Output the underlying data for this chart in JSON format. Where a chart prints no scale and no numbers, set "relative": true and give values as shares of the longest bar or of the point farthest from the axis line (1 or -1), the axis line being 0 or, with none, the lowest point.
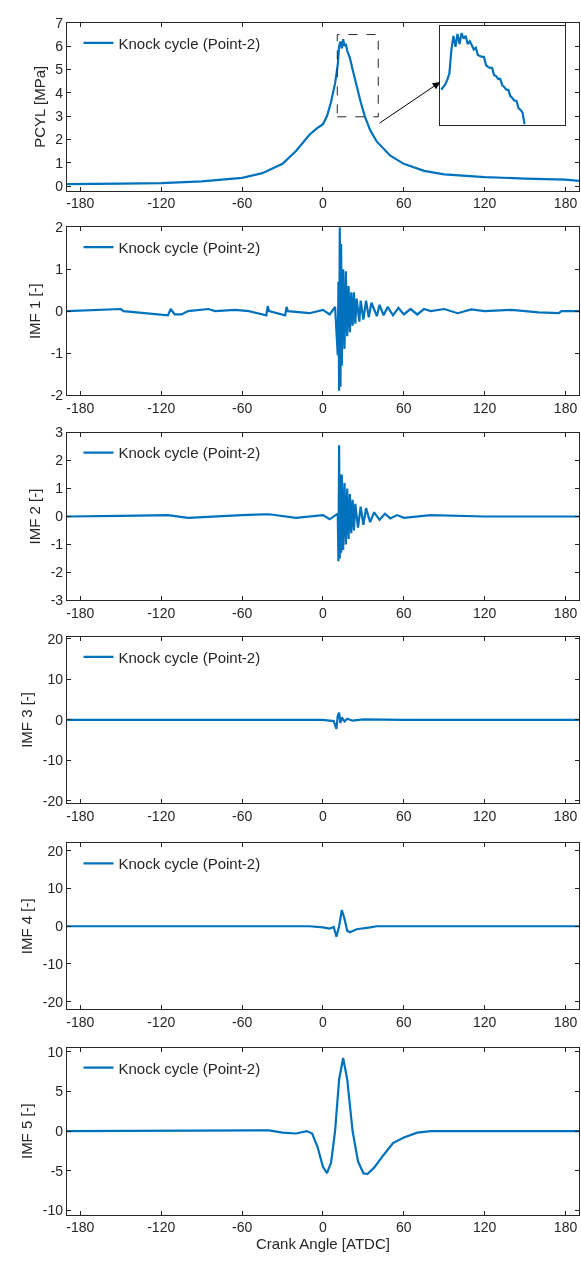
{
  "chart_data": [
    {
      "type": "line",
      "ylabel": "PCYL [MPa]",
      "xlim": [
        -190,
        190
      ],
      "xticks": [
        -180,
        -120,
        -60,
        0,
        60,
        120,
        180
      ],
      "ylim": [
        -0.2,
        7
      ],
      "yticks": [
        0,
        1,
        2,
        3,
        4,
        5,
        6,
        7
      ],
      "legend": "top left",
      "line_style": "solid",
      "series": [
        {
          "name": "Knock cycle (Point-2)",
          "color": "#0072bd",
          "x": [
            -190,
            -150,
            -120,
            -90,
            -60,
            -45,
            -30,
            -20,
            -10,
            -5,
            0,
            3,
            6,
            9,
            11,
            12,
            13,
            14,
            15,
            16,
            17,
            18,
            20,
            22,
            25,
            28,
            31,
            35,
            40,
            50,
            60,
            75,
            90,
            120,
            150,
            180,
            190
          ],
          "values": [
            0.08,
            0.1,
            0.12,
            0.2,
            0.35,
            0.55,
            0.95,
            1.5,
            2.2,
            2.45,
            2.65,
            3.0,
            3.6,
            4.4,
            5.2,
            6.0,
            6.2,
            5.9,
            6.3,
            6.0,
            6.1,
            5.8,
            5.5,
            5.0,
            4.3,
            3.6,
            3.0,
            2.4,
            1.9,
            1.3,
            0.95,
            0.65,
            0.5,
            0.38,
            0.32,
            0.27,
            0.22
          ]
        }
      ]
    },
    {
      "type": "line",
      "ylabel": "IMF 1 [-]",
      "xlim": [
        -190,
        190
      ],
      "xticks": [
        -180,
        -120,
        -60,
        0,
        60,
        120,
        180
      ],
      "ylim": [
        -2,
        2
      ],
      "yticks": [
        -2,
        -1,
        0,
        1,
        2
      ],
      "legend": "top left",
      "line_style": "solid",
      "series": [
        {
          "name": "Knock cycle (Point-2)",
          "color": "#0072bd",
          "x": [
            -190,
            -150,
            -148,
            -115,
            -113,
            -110,
            -105,
            -100,
            -85,
            -80,
            -65,
            -55,
            -42,
            -41,
            -40,
            -28,
            -27,
            -26,
            -10,
            0,
            5,
            9,
            11,
            11.5,
            12,
            12.5,
            13,
            13.5,
            14,
            15,
            16,
            17,
            18,
            19,
            20,
            21,
            22,
            23,
            24,
            25,
            27,
            28,
            30,
            32,
            34,
            36,
            40,
            42,
            45,
            48,
            52,
            56,
            60,
            65,
            70,
            75,
            80,
            90,
            100,
            110,
            120,
            140,
            160,
            175,
            177,
            190
          ],
          "values": [
            0,
            0.05,
            0,
            -0.1,
            0.05,
            -0.08,
            -0.08,
            0,
            0.05,
            0,
            0.03,
            0,
            -0.1,
            0.12,
            0,
            -0.1,
            0.1,
            0,
            -0.05,
            0.03,
            -0.08,
            0.1,
            -1.05,
            0.7,
            -1.9,
            2.0,
            -1.8,
            1.6,
            -1.3,
            1.0,
            -0.9,
            0.95,
            -0.6,
            0.6,
            -0.5,
            0.45,
            -0.35,
            0.45,
            -0.3,
            0.3,
            -0.25,
            0.25,
            -0.2,
            0.25,
            -0.15,
            0.2,
            -0.12,
            0.15,
            -0.1,
            0.1,
            -0.1,
            0.08,
            -0.08,
            0.05,
            -0.08,
            0.05,
            0,
            0.05,
            -0.05,
            0.04,
            0,
            0.03,
            -0.03,
            -0.05,
            0,
            0
          ]
        }
      ]
    },
    {
      "type": "line",
      "ylabel": "IMF 2 [-]",
      "xlim": [
        -190,
        190
      ],
      "xticks": [
        -180,
        -120,
        -60,
        0,
        60,
        120,
        180
      ],
      "ylim": [
        -3,
        3
      ],
      "yticks": [
        -3,
        -2,
        -1,
        0,
        1,
        2,
        3
      ],
      "legend": "top left",
      "line_style": "solid",
      "series": [
        {
          "name": "Knock cycle (Point-2)",
          "color": "#0072bd",
          "x": [
            -190,
            -150,
            -115,
            -100,
            -60,
            -40,
            -20,
            0,
            5,
            11,
            11.5,
            12,
            12.5,
            13,
            13.5,
            14,
            15,
            16,
            17,
            18,
            19,
            20,
            21,
            22,
            23,
            24,
            26,
            28,
            30,
            32,
            35,
            38,
            42,
            46,
            50,
            55,
            60,
            80,
            120,
            190
          ],
          "values": [
            0,
            0.02,
            0.05,
            -0.05,
            0.05,
            0.08,
            -0.05,
            0.05,
            -0.1,
            0.1,
            -1.6,
            2.55,
            -1.5,
            1.5,
            -1.3,
            1.5,
            -1.2,
            1.2,
            -1.0,
            1.0,
            -0.8,
            0.8,
            -0.6,
            0.6,
            -0.5,
            0.45,
            -0.4,
            0.35,
            -0.3,
            0.3,
            -0.2,
            0.15,
            -0.12,
            0.1,
            -0.07,
            0.05,
            -0.05,
            0.05,
            0,
            0
          ]
        }
      ]
    },
    {
      "type": "line",
      "ylabel": "IMF 3 [-]",
      "xlim": [
        -190,
        190
      ],
      "xticks": [
        -180,
        -120,
        -60,
        0,
        60,
        120,
        180
      ],
      "ylim": [
        -20.5,
        20.5
      ],
      "yticks": [
        -20,
        -10,
        0,
        10,
        20
      ],
      "legend": "top left",
      "line_style": "solid",
      "series": [
        {
          "name": "Knock cycle (Point-2)",
          "color": "#0072bd",
          "x": [
            -190,
            -60,
            0,
            8,
            10,
            11,
            12,
            13,
            14,
            16,
            18,
            22,
            30,
            60,
            190
          ],
          "values": [
            0,
            0,
            0,
            -0.3,
            -2.2,
            1.0,
            1.8,
            -0.8,
            0.6,
            -0.4,
            0.3,
            -0.2,
            0.1,
            0,
            0
          ]
        }
      ]
    },
    {
      "type": "line",
      "ylabel": "IMF 4 [-]",
      "xlim": [
        -190,
        190
      ],
      "xticks": [
        -180,
        -120,
        -60,
        0,
        60,
        120,
        180
      ],
      "ylim": [
        -22,
        22
      ],
      "yticks": [
        -20,
        -10,
        0,
        10,
        20
      ],
      "legend": "top left",
      "line_style": "solid",
      "series": [
        {
          "name": "Knock cycle (Point-2)",
          "color": "#0072bd",
          "x": [
            -190,
            -10,
            0,
            5,
            8,
            10,
            12,
            14,
            16,
            18,
            20,
            25,
            35,
            40,
            190
          ],
          "values": [
            0,
            0,
            -0.3,
            -0.6,
            -0.2,
            -2.8,
            0,
            4.3,
            2,
            -1.2,
            -1.6,
            -0.8,
            -0.3,
            0,
            0
          ]
        }
      ]
    },
    {
      "type": "line",
      "xlabel": "Crank Angle [ATDC]",
      "ylabel": "IMF 5 [-]",
      "xlim": [
        -190,
        190
      ],
      "xticks": [
        -180,
        -120,
        -60,
        0,
        60,
        120,
        180
      ],
      "ylim": [
        -10.5,
        10.5
      ],
      "yticks": [
        -10,
        -5,
        0,
        5,
        10
      ],
      "legend": "top left",
      "line_style": "solid",
      "series": [
        {
          "name": "Knock cycle (Point-2)",
          "color": "#0072bd",
          "x": [
            -190,
            -40,
            -30,
            -20,
            -12,
            -8,
            -4,
            0,
            3,
            6,
            9,
            12,
            15,
            18,
            22,
            26,
            30,
            33,
            38,
            45,
            52,
            60,
            70,
            80,
            190
          ],
          "values": [
            0,
            0.1,
            -0.2,
            -0.3,
            0,
            -0.3,
            -2.0,
            -4.5,
            -5.3,
            -4.0,
            0,
            6.5,
            9.2,
            6.5,
            0,
            -3.8,
            -5.3,
            -5.4,
            -4.6,
            -3,
            -1.5,
            -0.8,
            -0.2,
            0,
            0
          ]
        }
      ]
    },
    {
      "type": "line",
      "relative": true,
      "line_style": "solid",
      "categories": [
        null,
        null,
        null,
        null,
        null,
        null,
        null,
        null,
        null,
        null,
        null,
        null,
        null,
        null,
        null,
        null,
        null,
        null,
        null,
        null,
        null,
        null,
        null,
        null,
        null,
        null,
        null,
        null,
        null,
        null,
        null,
        null,
        null,
        null,
        null,
        null,
        null,
        null,
        null,
        null,
        null,
        null
      ],
      "series": [
        {
          "color": "#0072bd",
          "values": [
            0.38,
            0.41,
            0.44,
            0.49,
            0.56,
            0.82,
            0.97,
            0.85,
            0.99,
            0.88,
            1,
            0.94,
            0.97,
            0.88,
            0.91,
            0.87,
            0.82,
            0.84,
            0.76,
            0.75,
            0.74,
            0.74,
            0.65,
            0.63,
            0.62,
            0.62,
            0.54,
            0.53,
            0.5,
            0.5,
            0.43,
            0.41,
            0.38,
            0.38,
            0.31,
            0.29,
            0.26,
            0.26,
            0.18,
            0.16,
            0.13,
            0
          ]
        }
      ]
    }
  ]
}
